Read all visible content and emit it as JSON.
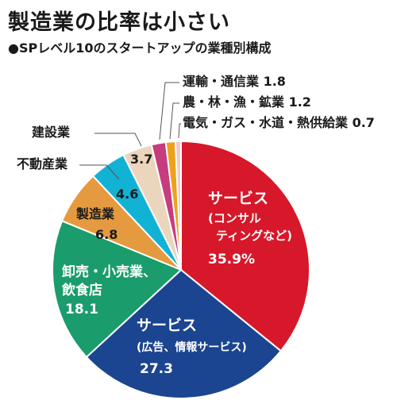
{
  "title": "製造業の比率は小さい",
  "subtitle": "●SPレベル10のスタートアップの業種別構成",
  "chart_data": {
    "type": "pie",
    "unit": "%",
    "slices": [
      {
        "label_lines": [
          "サービス",
          "(コンサル",
          "ティングなど)"
        ],
        "value": 35.9,
        "value_text": "35.9%",
        "color": "#d7182a"
      },
      {
        "label_lines": [
          "サービス",
          "(広告、情報サービス)"
        ],
        "value": 27.3,
        "value_text": "27.3",
        "color": "#1b4590"
      },
      {
        "label_lines": [
          "卸売・小売業、",
          "飲食店"
        ],
        "value": 18.1,
        "value_text": "18.1",
        "color": "#1a9c6c"
      },
      {
        "label_lines": [
          "製造業"
        ],
        "value": 6.8,
        "value_text": "6.8",
        "color": "#e59a3f"
      },
      {
        "label_lines": [
          "不動産業"
        ],
        "value": 4.6,
        "value_text": "4.6",
        "color": "#12b2d4"
      },
      {
        "label_lines": [
          "建設業"
        ],
        "value": 3.7,
        "value_text": "3.7",
        "color": "#ecd5bd"
      },
      {
        "label_lines": [
          "運輸・通信業 1.8"
        ],
        "value": 1.8,
        "value_text": "",
        "color": "#c63c7e"
      },
      {
        "label_lines": [
          "農・林・漁・鉱業 1.2"
        ],
        "value": 1.2,
        "value_text": "",
        "color": "#eda21b"
      },
      {
        "label_lines": [
          "電気・ガス・水道・熱供給業 0.7"
        ],
        "value": 0.7,
        "value_text": "",
        "color": "#f1c7cf"
      }
    ]
  }
}
